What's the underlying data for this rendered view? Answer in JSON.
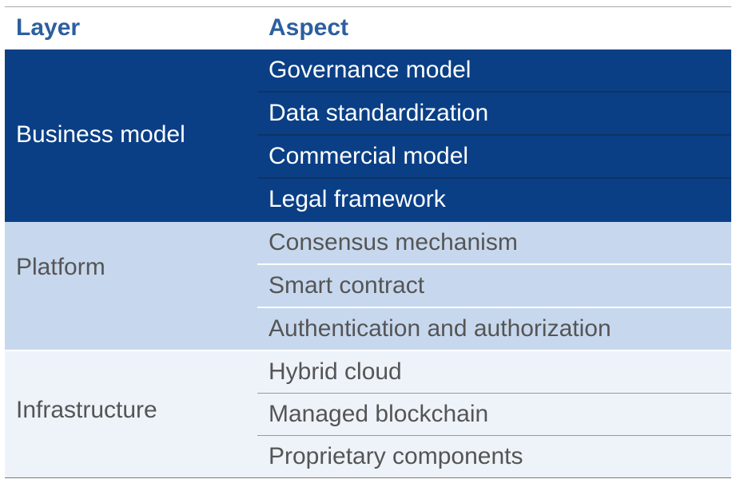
{
  "table": {
    "headers": {
      "layer": "Layer",
      "aspect": "Aspect"
    },
    "groups": [
      {
        "layer": "Business model",
        "aspects": [
          "Governance model",
          "Data standardization",
          "Commercial model",
          "Legal framework"
        ]
      },
      {
        "layer": "Platform",
        "aspects": [
          "Consensus mechanism",
          "Smart contract",
          "Authentication and authorization"
        ]
      },
      {
        "layer": "Infrastructure",
        "aspects": [
          "Hybrid cloud",
          "Managed blockchain",
          "Proprietary components"
        ]
      }
    ],
    "colors": {
      "header_text": "#2c5f9e",
      "business_bg": "#0a3f86",
      "platform_bg": "#c7d8ee",
      "infrastructure_bg": "#eef3fa"
    }
  }
}
